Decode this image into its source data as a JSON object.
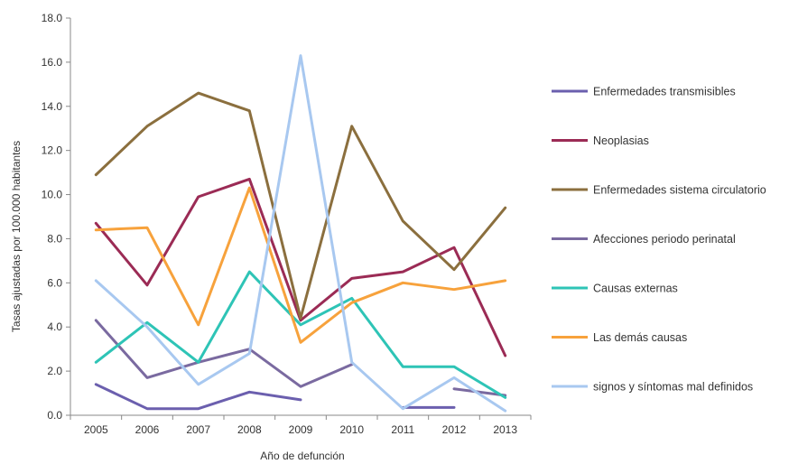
{
  "chart_data": {
    "type": "line",
    "title": "",
    "xlabel": "Año de defunción",
    "ylabel": "Tasas ajustadas por 100.000 habitantes",
    "x": [
      "2005",
      "2006",
      "2007",
      "2008",
      "2009",
      "2010",
      "2011",
      "2012",
      "2013"
    ],
    "ylim": [
      0,
      18
    ],
    "yticks": [
      "0.0",
      "2.0",
      "4.0",
      "6.0",
      "8.0",
      "10.0",
      "12.0",
      "14.0",
      "16.0",
      "18.0"
    ],
    "grid": false,
    "legend": "right",
    "series": [
      {
        "name": "Enfermedades transmisibles",
        "color": "#6b5fae",
        "values": [
          1.4,
          0.3,
          0.3,
          1.05,
          0.7,
          null,
          0.35,
          0.35,
          null
        ]
      },
      {
        "name": "Neoplasias",
        "color": "#9b2b55",
        "values": [
          8.7,
          5.9,
          9.9,
          10.7,
          4.3,
          6.2,
          6.5,
          7.6,
          2.7
        ]
      },
      {
        "name": "Enfermedades sistema circulatorio",
        "color": "#8b6f3e",
        "values": [
          10.9,
          13.1,
          14.6,
          13.8,
          4.4,
          13.1,
          8.8,
          6.6,
          9.4
        ]
      },
      {
        "name": "Afecciones periodo perinatal",
        "color": "#7a6aa0",
        "values": [
          4.3,
          1.7,
          2.4,
          3.0,
          1.3,
          2.3,
          null,
          1.2,
          0.9
        ]
      },
      {
        "name": "Causas externas",
        "color": "#2ec4b6",
        "values": [
          2.4,
          4.2,
          2.4,
          6.5,
          4.1,
          5.3,
          2.2,
          2.2,
          0.8
        ]
      },
      {
        "name": "Las demás causas",
        "color": "#f7a23c",
        "values": [
          8.4,
          8.5,
          4.1,
          10.3,
          3.3,
          5.1,
          6.0,
          5.7,
          6.1
        ]
      },
      {
        "name": "signos y síntomas mal definidos",
        "color": "#a8c8f0",
        "values": [
          6.1,
          4.0,
          1.4,
          2.8,
          16.3,
          2.4,
          0.3,
          1.7,
          0.2
        ]
      }
    ]
  }
}
